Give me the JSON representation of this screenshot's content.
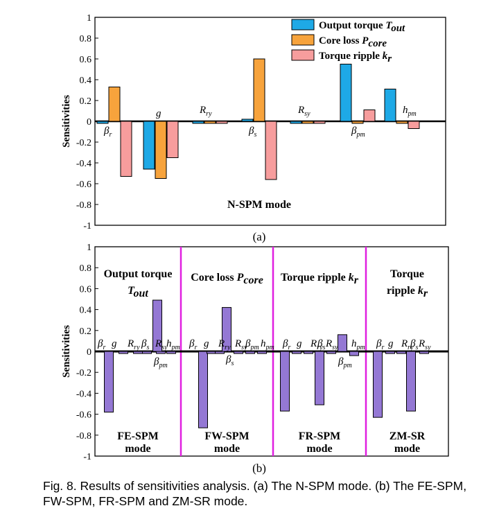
{
  "caption": "Fig. 8. Results of sensitivities analysis. (a) The N-SPM mode. (b) The FE-SPM, FW-SPM, FR-SPM and ZM-SR mode.",
  "colors": {
    "torque": "#1ea9e6",
    "core_loss": "#f7a33c",
    "ripple": "#f79d9d",
    "purple": "#9478d4",
    "divider": "#e01fe0"
  },
  "chart_data": [
    {
      "type": "bar",
      "panel_label": "(a)",
      "mode_label": "N-SPM mode",
      "ylabel": "Sensitivities",
      "xlabel": "",
      "ylim": [
        -1,
        1
      ],
      "yticks": [
        "1",
        "0.8",
        "0.6",
        "0.4",
        "0.2",
        "0",
        "-0.2",
        "-0.4",
        "-0.6",
        "-0.8",
        "-1"
      ],
      "legend_position": "top-right",
      "categories": [
        {
          "base": "β",
          "sub": "r"
        },
        {
          "base": "g",
          "sub": ""
        },
        {
          "base": "R",
          "sub": "ry"
        },
        {
          "base": "β",
          "sub": "s"
        },
        {
          "base": "R",
          "sub": "sy"
        },
        {
          "base": "β",
          "sub": "pm"
        },
        {
          "base": "h",
          "sub": "pm"
        }
      ],
      "series": [
        {
          "name": "Output torque",
          "symbol": "T",
          "symbol_sub": "out",
          "values": [
            -0.02,
            -0.46,
            -0.02,
            0.02,
            -0.02,
            0.55,
            0.31
          ]
        },
        {
          "name": "Core loss",
          "symbol": "P",
          "symbol_sub": "core",
          "values": [
            0.33,
            -0.55,
            -0.02,
            0.6,
            -0.02,
            -0.02,
            -0.02
          ]
        },
        {
          "name": "Torque ripple",
          "symbol": "k",
          "symbol_sub": "r",
          "values": [
            -0.53,
            -0.35,
            -0.02,
            -0.56,
            -0.02,
            0.11,
            -0.07
          ]
        }
      ]
    },
    {
      "type": "bar",
      "panel_label": "(b)",
      "ylabel": "Sensitivities",
      "xlabel": "",
      "ylim": [
        -1,
        1
      ],
      "yticks": [
        "1",
        "0.8",
        "0.6",
        "0.4",
        "0.2",
        "0",
        "-0.2",
        "-0.4",
        "-0.6",
        "-0.8",
        "-1"
      ],
      "groups": [
        {
          "title_line1": "Output torque",
          "title_line2": "",
          "title_symbol": "T",
          "title_symbol_sub": "out",
          "mode_line1": "FE-SPM",
          "mode_line2": "mode",
          "categories": [
            {
              "base": "β",
              "sub": "r"
            },
            {
              "base": "g",
              "sub": ""
            },
            {
              "base": "R",
              "sub": "ry"
            },
            {
              "base": "β",
              "sub": "s"
            },
            {
              "base": "R",
              "sub": "sy"
            },
            {
              "base": "β",
              "sub": "pm"
            },
            {
              "base": "h",
              "sub": "pm"
            }
          ],
          "values": [
            -0.58,
            -0.02,
            -0.02,
            -0.02,
            -0.02,
            0.49,
            -0.02
          ]
        },
        {
          "title_line1": "Core loss",
          "title_line2": "",
          "title_symbol": "P",
          "title_symbol_sub": "core",
          "mode_line1": "FW-SPM",
          "mode_line2": "mode",
          "categories": [
            {
              "base": "β",
              "sub": "r"
            },
            {
              "base": "g",
              "sub": ""
            },
            {
              "base": "R",
              "sub": "ry"
            },
            {
              "base": "β",
              "sub": "s"
            },
            {
              "base": "R",
              "sub": "sy"
            },
            {
              "base": "β",
              "sub": "pm"
            },
            {
              "base": "h",
              "sub": "pm"
            }
          ],
          "values": [
            -0.73,
            -0.02,
            -0.02,
            0.42,
            -0.02,
            -0.02,
            -0.02
          ]
        },
        {
          "title_line1": "Torque ripple",
          "title_line2": "",
          "title_symbol": "k",
          "title_symbol_sub": "r",
          "mode_line1": "FR-SPM",
          "mode_line2": "mode",
          "categories": [
            {
              "base": "β",
              "sub": "r"
            },
            {
              "base": "g",
              "sub": ""
            },
            {
              "base": "R",
              "sub": "ry"
            },
            {
              "base": "β",
              "sub": "s"
            },
            {
              "base": "R",
              "sub": "sy"
            },
            {
              "base": "β",
              "sub": "pm"
            },
            {
              "base": "h",
              "sub": "pm"
            }
          ],
          "values": [
            -0.57,
            -0.02,
            -0.02,
            -0.51,
            -0.02,
            0.16,
            -0.04
          ]
        },
        {
          "title_line1": "Torque",
          "title_line2": "ripple",
          "title_symbol": "k",
          "title_symbol_sub": "r",
          "mode_line1": "ZM-SR",
          "mode_line2": "mode",
          "categories": [
            {
              "base": "β",
              "sub": "r"
            },
            {
              "base": "g",
              "sub": ""
            },
            {
              "base": "R",
              "sub": "ry"
            },
            {
              "base": "β",
              "sub": "s"
            },
            {
              "base": "R",
              "sub": "sy"
            }
          ],
          "values": [
            -0.63,
            -0.02,
            -0.02,
            -0.57,
            -0.02
          ]
        }
      ]
    }
  ]
}
